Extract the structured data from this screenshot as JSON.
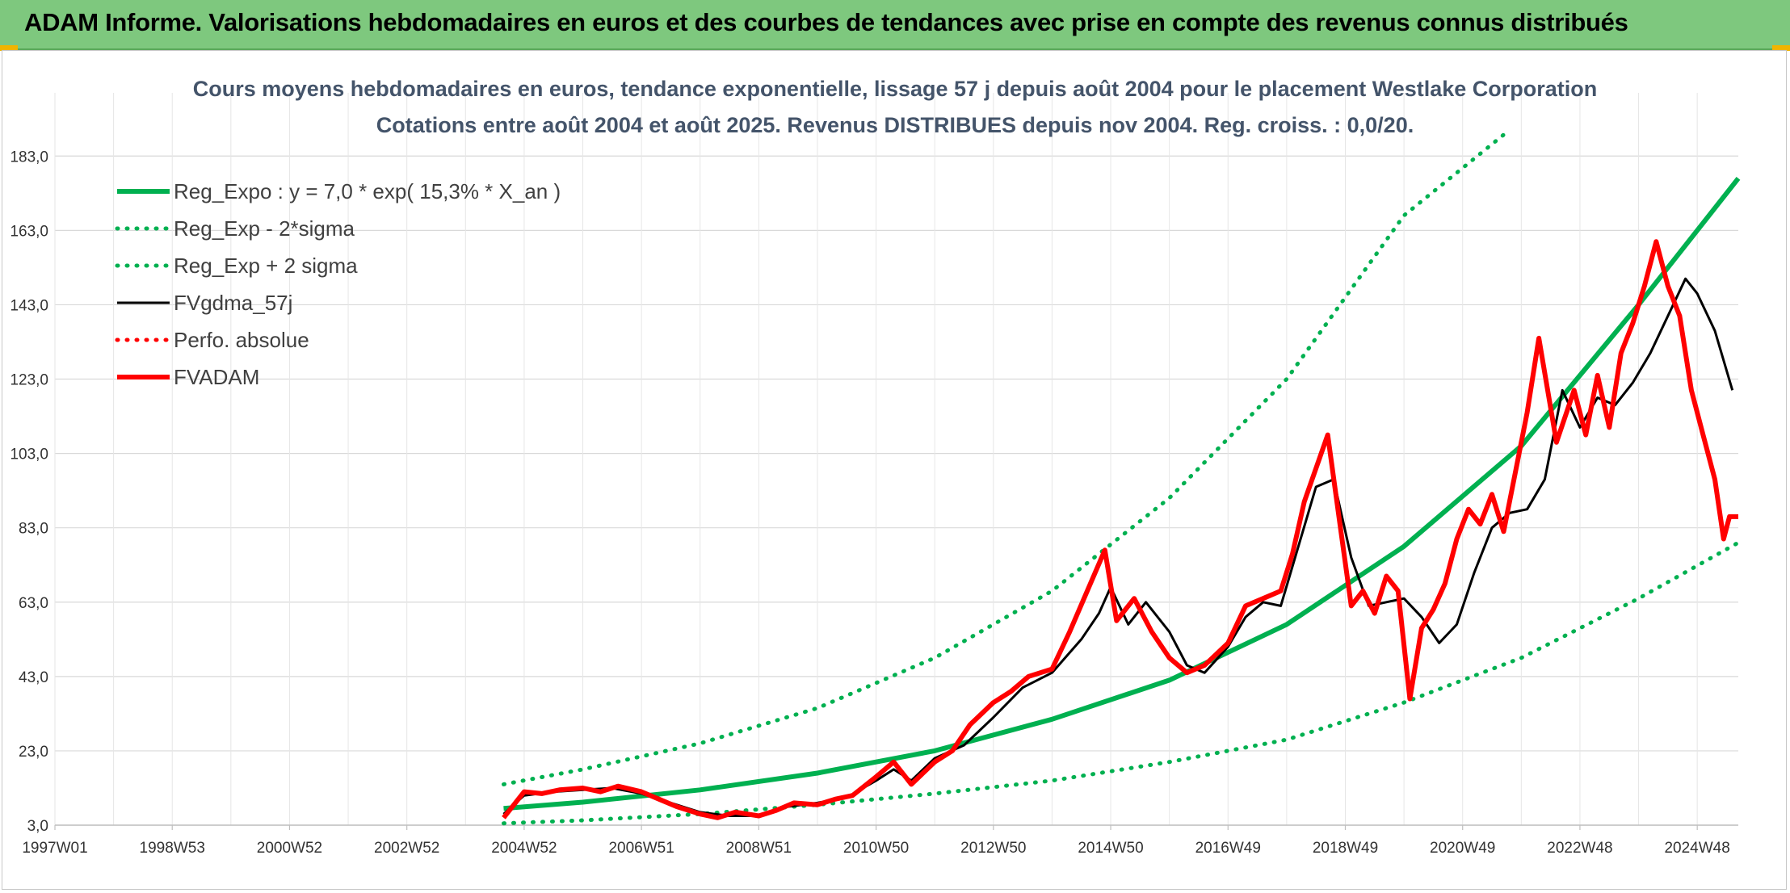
{
  "banner": {
    "title": "ADAM Informe. Valorisations hebdomadaires en euros et des courbes de tendances avec prise en compte des revenus connus distribués"
  },
  "colors": {
    "banner_bg": "#7ec87e",
    "title_text": "#44546a",
    "green": "#00b050",
    "black": "#000000",
    "red": "#ff0000",
    "grid": "#d9d9d9"
  },
  "chart_data": {
    "type": "line",
    "title": "Cours moyens hebdomadaires en euros, tendance exponentielle, lissage 57 j depuis août 2004 pour le placement Westlake Corporation",
    "subtitle": "Cotations entre août 2004 et août 2025. Revenus DISTRIBUES depuis nov 2004. Reg. croiss. : 0,0/20.",
    "xlabel": "",
    "ylabel": "",
    "ylim": [
      3.0,
      200.0
    ],
    "yticks": [
      "3,0",
      "23,0",
      "43,0",
      "63,0",
      "83,0",
      "103,0",
      "123,0",
      "143,0",
      "163,0",
      "183,0"
    ],
    "xlim": [
      1997.0,
      2025.7
    ],
    "xticks": [
      {
        "label": "1997W01",
        "year": 1997.0
      },
      {
        "label": "1998W53",
        "year": 1999.0
      },
      {
        "label": "2000W52",
        "year": 2001.0
      },
      {
        "label": "2002W52",
        "year": 2003.0
      },
      {
        "label": "2004W52",
        "year": 2005.0
      },
      {
        "label": "2006W51",
        "year": 2007.0
      },
      {
        "label": "2008W51",
        "year": 2009.0
      },
      {
        "label": "2010W50",
        "year": 2011.0
      },
      {
        "label": "2012W50",
        "year": 2013.0
      },
      {
        "label": "2014W50",
        "year": 2015.0
      },
      {
        "label": "2016W49",
        "year": 2017.0
      },
      {
        "label": "2018W49",
        "year": 2019.0
      },
      {
        "label": "2020W49",
        "year": 2021.0
      },
      {
        "label": "2022W48",
        "year": 2023.0
      },
      {
        "label": "2024W48",
        "year": 2025.0
      }
    ],
    "grid": true,
    "legend": "top-left",
    "series": [
      {
        "name": "Reg_Expo : y = 7,0 * exp( 15,3% *  X_an )",
        "style": "solid-thick",
        "color": "#00b050",
        "x": [
          2004.65,
          2006,
          2008,
          2010,
          2012,
          2014,
          2016,
          2018,
          2020,
          2022,
          2024,
          2025.7
        ],
        "y": [
          7.5,
          9.2,
          12.5,
          17.0,
          23.0,
          31.5,
          42.0,
          57.0,
          78.0,
          105.0,
          143.0,
          177.0
        ]
      },
      {
        "name": "Reg_Exp - 2*sigma",
        "style": "dotted",
        "color": "#00b050",
        "x": [
          2004.65,
          2006,
          2008,
          2010,
          2012,
          2014,
          2016,
          2018,
          2020,
          2022,
          2024,
          2025.7
        ],
        "y": [
          3.5,
          4.3,
          6.0,
          8.5,
          11.5,
          15.0,
          20.0,
          26.0,
          36.0,
          48.0,
          64.0,
          79.0
        ]
      },
      {
        "name": "Reg_Exp + 2 sigma",
        "style": "dotted",
        "color": "#00b050",
        "x": [
          2004.65,
          2006,
          2008,
          2010,
          2012,
          2014,
          2016,
          2018,
          2020,
          2021.8
        ],
        "y": [
          14.0,
          18.0,
          25.0,
          34.5,
          48.0,
          66.0,
          91.0,
          123.0,
          167.0,
          190.0
        ]
      },
      {
        "name": "FVgdma_57j",
        "style": "solid",
        "color": "#000000",
        "x": [
          2004.65,
          2005,
          2005.5,
          2006,
          2006.5,
          2007,
          2007.5,
          2008,
          2008.5,
          2009,
          2009.5,
          2010,
          2010.5,
          2011,
          2011.3,
          2011.6,
          2012,
          2012.5,
          2013,
          2013.5,
          2014,
          2014.5,
          2014.8,
          2015,
          2015.3,
          2015.6,
          2016,
          2016.3,
          2016.6,
          2017,
          2017.3,
          2017.6,
          2017.9,
          2018.2,
          2018.5,
          2018.8,
          2019.1,
          2019.4,
          2019.7,
          2020.0,
          2020.3,
          2020.6,
          2020.9,
          2021.2,
          2021.5,
          2021.8,
          2022.1,
          2022.4,
          2022.7,
          2023.0,
          2023.3,
          2023.6,
          2023.9,
          2024.2,
          2024.5,
          2024.8,
          2025.0,
          2025.3,
          2025.6
        ],
        "y": [
          6.0,
          11.0,
          12.0,
          12.5,
          13.0,
          11.5,
          9.0,
          6.5,
          5.5,
          5.5,
          8.0,
          9.0,
          10.5,
          15.0,
          18.0,
          15.0,
          21.0,
          24.5,
          32.0,
          40.0,
          44.0,
          53.0,
          60.0,
          67.0,
          57.0,
          63.0,
          55.0,
          46.0,
          44.0,
          51.0,
          59.0,
          63.0,
          62.0,
          78.0,
          94.0,
          96.0,
          75.0,
          62.0,
          63.0,
          64.0,
          59.0,
          52.0,
          57.0,
          71.0,
          83.0,
          87.0,
          88.0,
          96.0,
          120.0,
          110.0,
          118.0,
          116.0,
          122.0,
          130.0,
          140.0,
          150.0,
          146.0,
          136.0,
          120.0
        ]
      },
      {
        "name": "Perfo. absolue",
        "style": "dotted",
        "color": "#ff0000",
        "x": [],
        "y": []
      },
      {
        "name": "FVADAM",
        "style": "solid-thick",
        "color": "#ff0000",
        "x": [
          2004.65,
          2005,
          2005.3,
          2005.6,
          2006,
          2006.3,
          2006.6,
          2007,
          2007.3,
          2007.6,
          2008,
          2008.3,
          2008.6,
          2009,
          2009.3,
          2009.6,
          2010,
          2010.3,
          2010.6,
          2011,
          2011.3,
          2011.6,
          2012,
          2012.3,
          2012.6,
          2013,
          2013.3,
          2013.6,
          2014,
          2014.3,
          2014.6,
          2014.9,
          2015.1,
          2015.4,
          2015.7,
          2016.0,
          2016.3,
          2016.6,
          2017,
          2017.3,
          2017.6,
          2017.9,
          2018.1,
          2018.3,
          2018.5,
          2018.7,
          2018.9,
          2019.1,
          2019.3,
          2019.5,
          2019.7,
          2019.9,
          2020.1,
          2020.3,
          2020.5,
          2020.7,
          2020.9,
          2021.1,
          2021.3,
          2021.5,
          2021.7,
          2021.9,
          2022.1,
          2022.3,
          2022.6,
          2022.9,
          2023.1,
          2023.3,
          2023.5,
          2023.7,
          2023.9,
          2024.1,
          2024.3,
          2024.5,
          2024.7,
          2024.9,
          2025.1,
          2025.3,
          2025.45,
          2025.55,
          2025.7
        ],
        "y": [
          5.0,
          12.0,
          11.5,
          12.5,
          13.0,
          12.0,
          13.5,
          12.0,
          10.0,
          8.0,
          6.0,
          5.0,
          6.5,
          5.5,
          7.0,
          9.0,
          8.5,
          10.0,
          11.0,
          16.0,
          20.0,
          14.0,
          20.0,
          23.0,
          30.0,
          36.0,
          39.0,
          43.0,
          45.0,
          55.0,
          66.0,
          77.0,
          58.0,
          64.0,
          55.0,
          48.0,
          44.0,
          46.0,
          52.0,
          62.0,
          64.0,
          66.0,
          76.0,
          90.0,
          99.0,
          108.0,
          85.0,
          62.0,
          66.0,
          60.0,
          70.0,
          66.0,
          37.0,
          56.0,
          61.0,
          68.0,
          80.0,
          88.0,
          84.0,
          92.0,
          82.0,
          98.0,
          114.0,
          134.0,
          106.0,
          120.0,
          108.0,
          124.0,
          110.0,
          130.0,
          138.0,
          148.0,
          160.0,
          148.0,
          140.0,
          120.0,
          108.0,
          96.0,
          80.0,
          86.0,
          86.0
        ]
      }
    ]
  }
}
